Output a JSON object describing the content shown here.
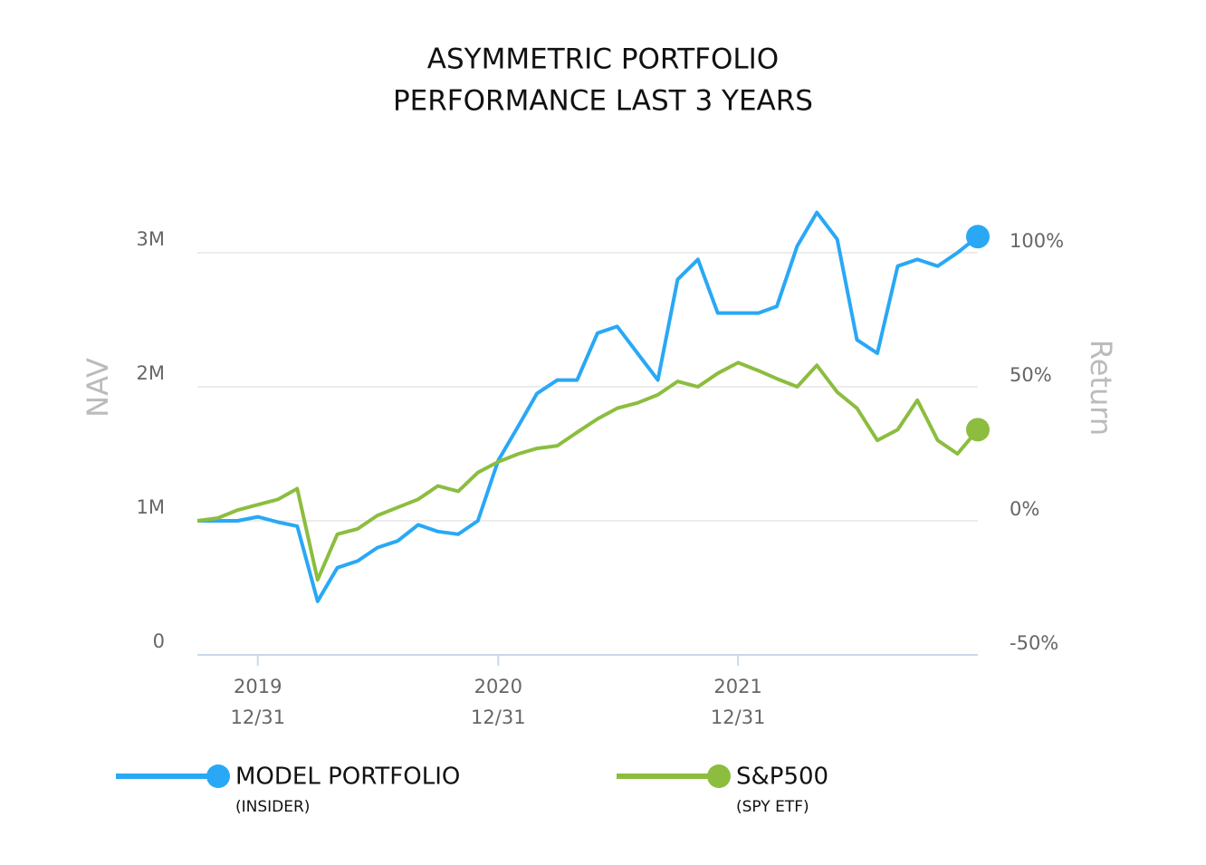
{
  "chart_data": {
    "type": "line",
    "title": [
      "ASYMMETRIC PORTFOLIO",
      "PERFORMANCE LAST 3 YEARS"
    ],
    "y_label": "NAV",
    "y2_label": "Return",
    "x": [
      "2019-09-30",
      "2019-10-31",
      "2019-11-30",
      "2019-12-31",
      "2020-01-31",
      "2020-02-29",
      "2020-03-31",
      "2020-04-30",
      "2020-05-31",
      "2020-06-30",
      "2020-07-31",
      "2020-08-31",
      "2020-09-30",
      "2020-10-31",
      "2020-11-30",
      "2020-12-31",
      "2021-01-31",
      "2021-02-28",
      "2021-03-31",
      "2021-04-30",
      "2021-05-31",
      "2021-06-30",
      "2021-07-31",
      "2021-08-31",
      "2021-09-30",
      "2021-10-31",
      "2021-11-30",
      "2021-12-31",
      "2022-01-31",
      "2022-02-28",
      "2022-03-31",
      "2022-04-30",
      "2022-05-31",
      "2022-06-30",
      "2022-07-31",
      "2022-08-31",
      "2022-09-30",
      "2022-10-31",
      "2022-11-30",
      "2022-12-31"
    ],
    "xlim": [
      "2019-09-30",
      "2022-12-31"
    ],
    "xticks": [
      {
        "value": "2019-12-31",
        "label": [
          "2019",
          "12/31"
        ]
      },
      {
        "value": "2020-12-31",
        "label": [
          "2020",
          "12/31"
        ]
      },
      {
        "value": "2021-12-31",
        "label": [
          "2021",
          "12/31"
        ]
      }
    ],
    "ylim": [
      0,
      3500000
    ],
    "yticks": [
      0,
      {
        "value": 1000000,
        "label": "1M"
      },
      {
        "value": 2000000,
        "label": "2M"
      },
      {
        "value": 3000000,
        "label": "3M"
      }
    ],
    "y2lim": [
      -50,
      125
    ],
    "y2ticks": [
      {
        "value": -50,
        "label": "-50%"
      },
      {
        "value": 0,
        "label": "0%"
      },
      {
        "value": 50,
        "label": "50%"
      },
      {
        "value": 100,
        "label": "100%"
      }
    ],
    "grid": true,
    "series": [
      {
        "name": "MODEL PORTFOLIO",
        "sublabel": "(INSIDER)",
        "color": "#29a8f5",
        "values": [
          1000000,
          1000000,
          1000000,
          1030000,
          990000,
          960000,
          400000,
          650000,
          700000,
          800000,
          850000,
          970000,
          920000,
          900000,
          1000000,
          1450000,
          1710000,
          1950000,
          2050000,
          2050000,
          2400000,
          2450000,
          2250000,
          2050000,
          2800000,
          2950000,
          2550000,
          2550000,
          2550000,
          2600000,
          3050000,
          3300000,
          3100000,
          2350000,
          2250000,
          2900000,
          2950000,
          2900000,
          3000000,
          3120000
        ]
      },
      {
        "name": "S&P500",
        "sublabel": "(SPY ETF)",
        "color": "#8cbd3f",
        "axis": "y2",
        "values": [
          0,
          1,
          4,
          6,
          8,
          12,
          -22,
          -5,
          -3,
          2,
          5,
          8,
          13,
          11,
          18,
          22,
          25,
          27,
          28,
          33,
          38,
          42,
          44,
          47,
          52,
          50,
          55,
          59,
          56,
          53,
          50,
          58,
          48,
          42,
          30,
          34,
          45,
          30,
          25,
          34
        ]
      }
    ]
  }
}
